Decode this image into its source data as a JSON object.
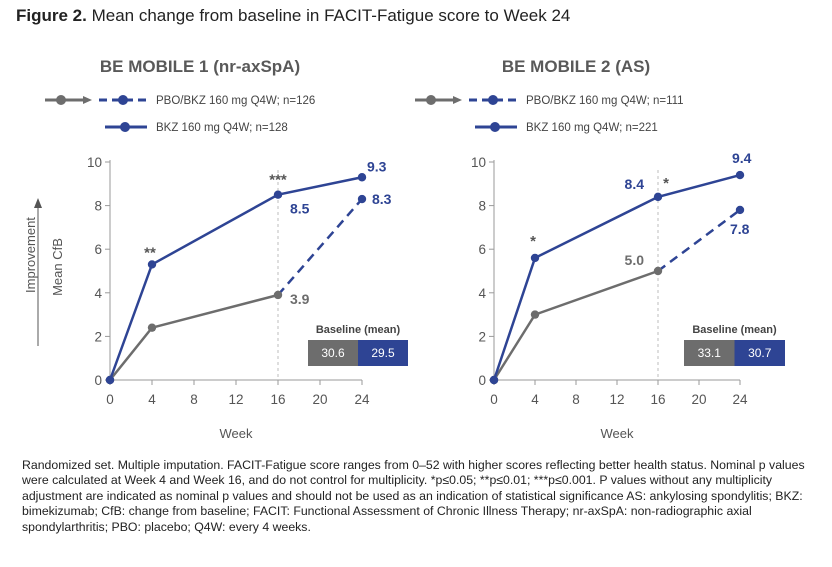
{
  "figure": {
    "label": "Figure 2.",
    "title": "Mean change from baseline in FACIT-Fatigue score to Week 24"
  },
  "colors": {
    "pbo": "#6d6d6d",
    "bkz": "#2e4494",
    "grid": "#bdbdbd"
  },
  "chart_data": [
    {
      "type": "line",
      "title": "BE MOBILE 1 (nr-axSpA)",
      "xlabel": "Week",
      "ylabel": "Mean CfB",
      "ylabel_secondary": "Improvement",
      "x_ticks": [
        0,
        4,
        8,
        12,
        16,
        20,
        24
      ],
      "y_ticks": [
        0,
        2,
        4,
        6,
        8,
        10
      ],
      "xlim": [
        0,
        24
      ],
      "ylim": [
        0,
        10
      ],
      "switch_week": 16,
      "series": [
        {
          "name": "PBO/BKZ 160 mg Q4W; n=126",
          "key": "pbo",
          "x": [
            0,
            4,
            16,
            24
          ],
          "values": [
            0,
            2.4,
            3.9,
            8.3
          ],
          "dashed_after": 16
        },
        {
          "name": "BKZ 160 mg Q4W; n=128",
          "key": "bkz",
          "x": [
            0,
            4,
            16,
            24
          ],
          "values": [
            0,
            5.3,
            8.5,
            9.3
          ]
        }
      ],
      "data_labels": [
        {
          "series": "pbo",
          "x": 16,
          "text": "3.9"
        },
        {
          "series": "pbo",
          "x": 24,
          "text": "8.3"
        },
        {
          "series": "bkz",
          "x": 16,
          "text": "8.5"
        },
        {
          "series": "bkz",
          "x": 24,
          "text": "9.3"
        }
      ],
      "significance": [
        {
          "x": 4,
          "text": "**"
        },
        {
          "x": 16,
          "text": "***"
        }
      ],
      "baseline": {
        "title": "Baseline (mean)",
        "pbo": "30.6",
        "bkz": "29.5"
      }
    },
    {
      "type": "line",
      "title": "BE MOBILE 2 (AS)",
      "xlabel": "Week",
      "ylabel": "",
      "x_ticks": [
        0,
        4,
        8,
        12,
        16,
        20,
        24
      ],
      "y_ticks": [
        0,
        2,
        4,
        6,
        8,
        10
      ],
      "xlim": [
        0,
        24
      ],
      "ylim": [
        0,
        10
      ],
      "switch_week": 16,
      "series": [
        {
          "name": "PBO/BKZ 160 mg Q4W; n=111",
          "key": "pbo",
          "x": [
            0,
            4,
            16,
            24
          ],
          "values": [
            0,
            3.0,
            5.0,
            7.8
          ],
          "dashed_after": 16
        },
        {
          "name": "BKZ 160 mg Q4W; n=221",
          "key": "bkz",
          "x": [
            0,
            4,
            16,
            24
          ],
          "values": [
            0,
            5.6,
            8.4,
            9.4
          ]
        }
      ],
      "data_labels": [
        {
          "series": "pbo",
          "x": 16,
          "text": "5.0"
        },
        {
          "series": "pbo",
          "x": 24,
          "text": "7.8"
        },
        {
          "series": "bkz",
          "x": 16,
          "text": "8.4"
        },
        {
          "series": "bkz",
          "x": 24,
          "text": "9.4"
        }
      ],
      "significance": [
        {
          "x": 4,
          "text": "*"
        },
        {
          "x": 16,
          "text": "*"
        }
      ],
      "baseline": {
        "title": "Baseline (mean)",
        "pbo": "33.1",
        "bkz": "30.7"
      }
    }
  ],
  "footnote": "Randomized set. Multiple imputation. FACIT-Fatigue score ranges from 0–52 with higher scores reflecting better health status. Nominal p values were calculated at Week 4 and Week 16, and do not control for multiplicity. *p≤0.05; **p≤0.01; ***p≤0.001. P values without any multiplicity adjustment are indicated as nominal p values and should not be used as an indication of statistical significance AS: ankylosing spondylitis; BKZ: bimekizumab; CfB: change from baseline; FACIT: Functional Assessment of Chronic Illness Therapy; nr-axSpA: non-radiographic axial spondylarthritis; PBO: placebo; Q4W: every 4 weeks."
}
